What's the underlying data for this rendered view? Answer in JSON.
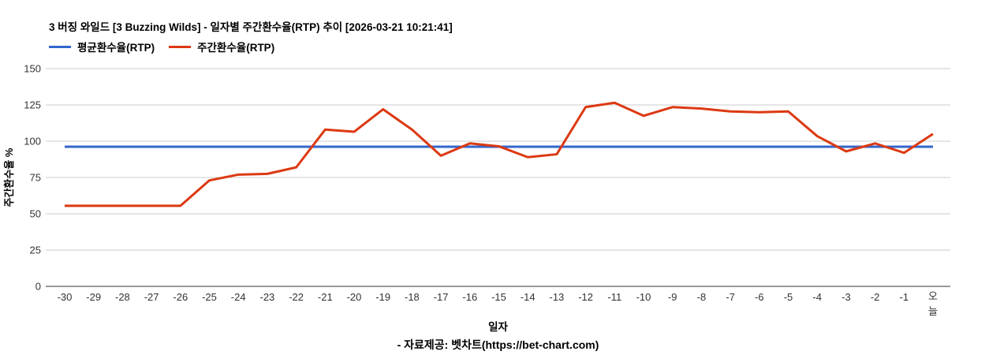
{
  "header": {
    "title": "3 버징 와일드 [3 Buzzing Wilds] - 일자별 주간환수율(RTP) 추이 [2026-03-21 10:21:41]"
  },
  "legend": [
    {
      "label": "평균환수율(RTP)",
      "color": "#3366cc"
    },
    {
      "label": "주간환수율(RTP)",
      "color": "#dc3912"
    }
  ],
  "footer": {
    "credit": "- 자료제공: 벳차트(https://bet-chart.com)"
  },
  "chart_data": {
    "type": "line",
    "title": "3 버징 와일드 [3 Buzzing Wilds] - 일자별 주간환수율(RTP) 추이 [2026-03-21 10:21:41]",
    "xlabel": "일자",
    "ylabel": "주간환수율 %",
    "categories": [
      "-30",
      "-29",
      "-28",
      "-27",
      "-26",
      "-25",
      "-24",
      "-23",
      "-22",
      "-21",
      "-20",
      "-19",
      "-18",
      "-17",
      "-16",
      "-15",
      "-14",
      "-13",
      "-12",
      "-11",
      "-10",
      "-9",
      "-8",
      "-7",
      "-6",
      "-5",
      "-4",
      "-3",
      "-2",
      "-1",
      "오늘"
    ],
    "series": [
      {
        "name": "평균환수율(RTP)",
        "color": "#3366cc",
        "values": [
          96.2,
          96.2,
          96.2,
          96.2,
          96.2,
          96.2,
          96.2,
          96.2,
          96.2,
          96.2,
          96.2,
          96.2,
          96.2,
          96.2,
          96.2,
          96.2,
          96.2,
          96.2,
          96.2,
          96.2,
          96.2,
          96.2,
          96.2,
          96.2,
          96.2,
          96.2,
          96.2,
          96.2,
          96.2,
          96.2,
          96.2
        ]
      },
      {
        "name": "주간환수율(RTP)",
        "color": "#dc3912",
        "values": [
          55.5,
          55.5,
          55.5,
          55.5,
          55.5,
          73,
          77,
          77.5,
          82,
          108,
          106.5,
          122,
          108,
          90,
          98.5,
          96.5,
          89,
          91,
          123.5,
          126.5,
          117.5,
          123.5,
          122.5,
          120.5,
          120,
          120.5,
          103.5,
          93,
          98.5,
          92,
          105
        ]
      }
    ],
    "ylim": [
      0,
      150
    ],
    "yticks": [
      0,
      25,
      50,
      75,
      100,
      125,
      150
    ],
    "grid": true,
    "legend_position": "top"
  }
}
